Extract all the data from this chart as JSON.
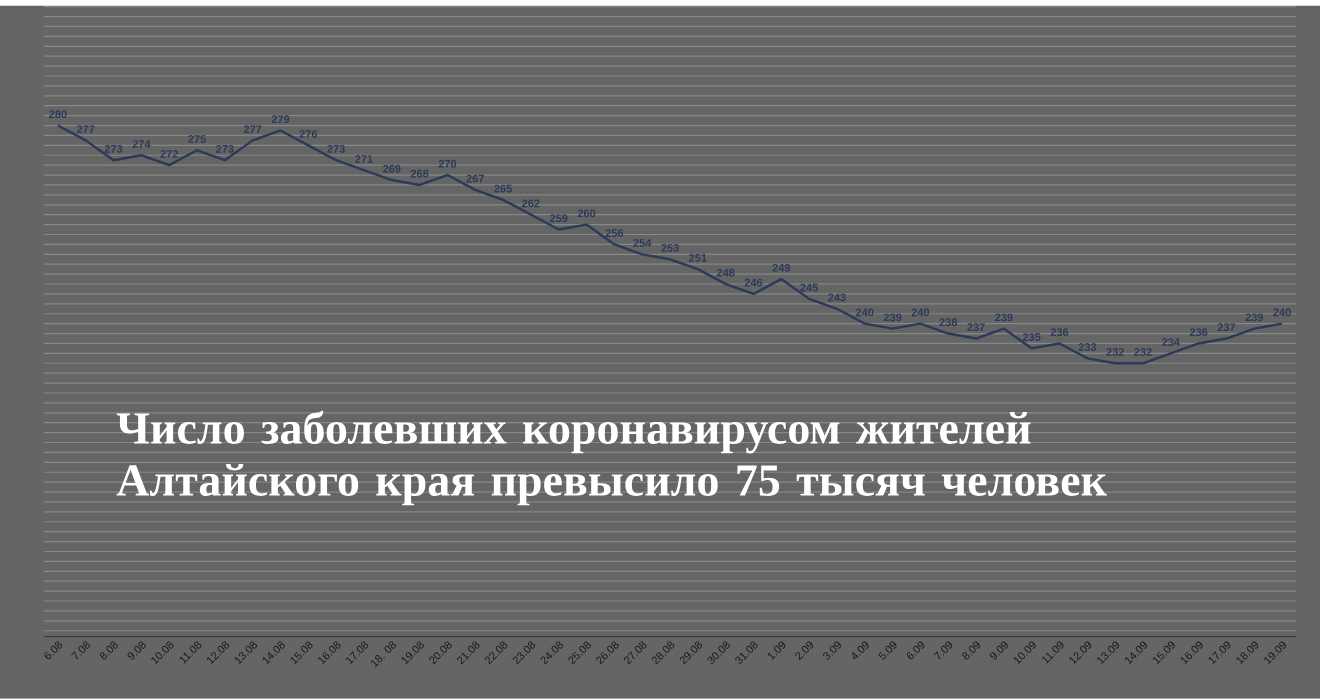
{
  "chart_data": {
    "type": "line",
    "title": "Число заболевших коронавирусом жителей Алтайского края превысило 75 тысяч человек",
    "categories": [
      "6.08",
      "7.08",
      "8.08",
      "9.08",
      "10.08",
      "11.08",
      "12.08",
      "13.08",
      "14.08",
      "15.08",
      "16.08",
      "17.08",
      "18. 08",
      "19.08",
      "20.08",
      "21.08",
      "22.08",
      "23.08",
      "24.08",
      "25.08",
      "26.08",
      "27.08",
      "28.08",
      "29.08",
      "30.08",
      "31.08",
      "1.09",
      "2.09",
      "3.09",
      "4.09",
      "5.09",
      "6.09",
      "7.09",
      "8.09",
      "9.09",
      "10.09",
      "11.09",
      "12.09",
      "13.09",
      "14.09",
      "15.09",
      "16.09",
      "17.09",
      "18.09",
      "19.09"
    ],
    "series": [
      {
        "color": "#2b3a58",
        "values": [
          280,
          277,
          273,
          274,
          272,
          275,
          273,
          277,
          279,
          276,
          273,
          271,
          269,
          268,
          270,
          267,
          265,
          262,
          259,
          260,
          256,
          254,
          253,
          251,
          248,
          246,
          249,
          245,
          243,
          240,
          239,
          240,
          238,
          237,
          239,
          235,
          236,
          233,
          232,
          232,
          234,
          236,
          237,
          239,
          240
        ],
        "value_labels": [
          "280",
          "277",
          "273",
          "274",
          "272",
          "275",
          "273",
          "277",
          "279",
          "276",
          "273",
          "271",
          "269",
          "268",
          "270",
          "267",
          "265",
          "262",
          "259",
          "260",
          "256",
          "254",
          "253",
          "251",
          "248",
          "246",
          "249",
          "245",
          "243",
          "240",
          "239",
          "240",
          "238",
          "237",
          "239",
          "235",
          "236",
          "233",
          "232",
          "232",
          "234",
          "236",
          "237",
          "239",
          "240"
        ]
      }
    ],
    "grid": "y",
    "marker": "none",
    "line_style": "solid"
  }
}
